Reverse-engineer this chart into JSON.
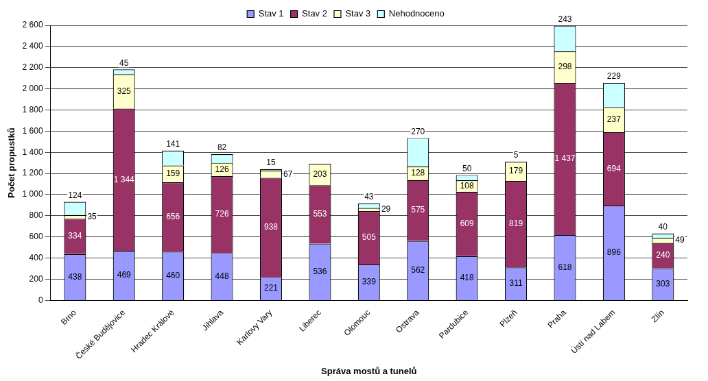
{
  "chart_data": {
    "type": "bar",
    "stacked": true,
    "xlabel": "Správa mostů a tunelů",
    "ylabel": "Počet propustků",
    "categories": [
      "Brno",
      "České Budějovice",
      "Hradec Králové",
      "Jihlava",
      "Karlovy Vary",
      "Liberec",
      "Olomouc",
      "Ostrava",
      "Pardubice",
      "Plzeň",
      "Praha",
      "Ústí nad Labem",
      "Zlín"
    ],
    "series": [
      {
        "name": "Stav 1",
        "color": "#9999ff",
        "values": [
          438,
          469,
          460,
          448,
          221,
          536,
          339,
          562,
          418,
          311,
          618,
          896,
          303
        ]
      },
      {
        "name": "Stav 2",
        "color": "#993366",
        "values": [
          334,
          1344,
          656,
          726,
          938,
          553,
          505,
          575,
          609,
          819,
          1437,
          694,
          240
        ]
      },
      {
        "name": "Stav 3",
        "color": "#ffffcc",
        "values": [
          35,
          325,
          159,
          126,
          67,
          203,
          29,
          128,
          108,
          179,
          298,
          237,
          49
        ]
      },
      {
        "name": "Nehodnoceno",
        "color": "#ccffff",
        "values": [
          124,
          45,
          141,
          82,
          15,
          null,
          43,
          270,
          50,
          5,
          243,
          229,
          40
        ]
      }
    ],
    "ylim": [
      0,
      2600
    ],
    "yticks": [
      {
        "value": 0,
        "label": "0"
      },
      {
        "value": 200,
        "label": "200"
      },
      {
        "value": 400,
        "label": "400"
      },
      {
        "value": 600,
        "label": "600"
      },
      {
        "value": 800,
        "label": "800"
      },
      {
        "value": 1000,
        "label": "1 000"
      },
      {
        "value": 1200,
        "label": "1 200"
      },
      {
        "value": 1400,
        "label": "1 400"
      },
      {
        "value": 1600,
        "label": "1 600"
      },
      {
        "value": 1800,
        "label": "1 800"
      },
      {
        "value": 2000,
        "label": "2 000"
      },
      {
        "value": 2200,
        "label": "2 200"
      },
      {
        "value": 2400,
        "label": "2 400"
      },
      {
        "value": 2600,
        "label": "2 600"
      }
    ],
    "grid": "y",
    "legend": "top",
    "data_labels": true
  }
}
